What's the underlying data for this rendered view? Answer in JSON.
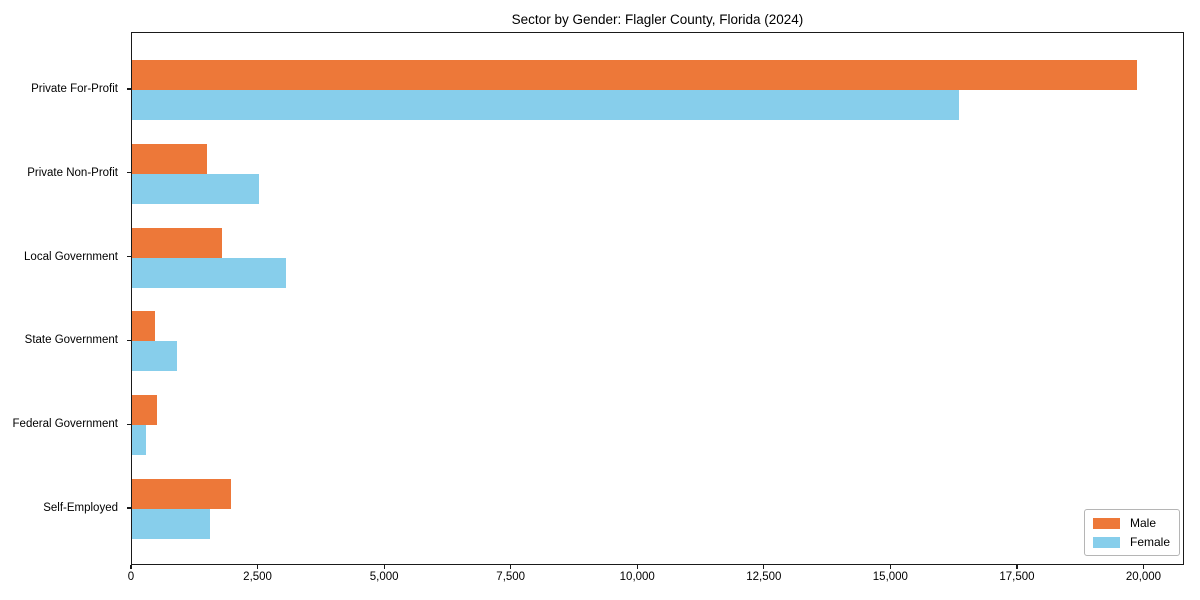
{
  "chart_data": {
    "type": "bar",
    "orientation": "horizontal",
    "title": "Sector by Gender: Flagler County, Florida (2024)",
    "categories": [
      "Private For-Profit",
      "Private Non-Profit",
      "Local Government",
      "State Government",
      "Federal Government",
      "Self-Employed"
    ],
    "series": [
      {
        "name": "Male",
        "color": "#ED7839",
        "values": [
          19860,
          1480,
          1780,
          460,
          490,
          1960
        ]
      },
      {
        "name": "Female",
        "color": "#87CEEB",
        "values": [
          16340,
          2510,
          3050,
          890,
          280,
          1540
        ]
      }
    ],
    "xlabel": "",
    "ylabel": "",
    "xlim": [
      0,
      20800
    ],
    "x_ticks": [
      0,
      2500,
      5000,
      7500,
      10000,
      12500,
      15000,
      17500,
      20000
    ],
    "x_tick_labels": [
      "0",
      "2,500",
      "5,000",
      "7,500",
      "10,000",
      "12,500",
      "15,000",
      "17,500",
      "20,000"
    ],
    "grid": false,
    "legend": {
      "position": "lower right"
    }
  }
}
